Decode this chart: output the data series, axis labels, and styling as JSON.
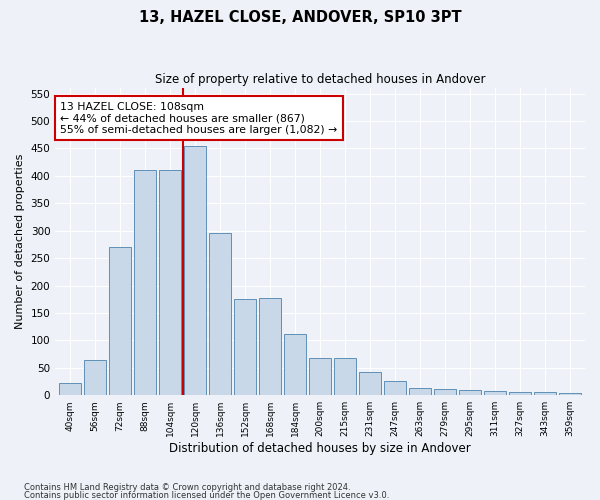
{
  "title": "13, HAZEL CLOSE, ANDOVER, SP10 3PT",
  "subtitle": "Size of property relative to detached houses in Andover",
  "xlabel": "Distribution of detached houses by size in Andover",
  "ylabel": "Number of detached properties",
  "footnote1": "Contains HM Land Registry data © Crown copyright and database right 2024.",
  "footnote2": "Contains public sector information licensed under the Open Government Licence v3.0.",
  "annotation_line1": "13 HAZEL CLOSE: 108sqm",
  "annotation_line2": "← 44% of detached houses are smaller (867)",
  "annotation_line3": "55% of semi-detached houses are larger (1,082) →",
  "bar_color": "#c8d8e8",
  "bar_edge_color": "#6090b8",
  "vline_color": "#cc0000",
  "annotation_box_color": "#ffffff",
  "annotation_box_edge": "#cc0000",
  "background_color": "#eef2f8",
  "categories": [
    "40sqm",
    "56sqm",
    "72sqm",
    "88sqm",
    "104sqm",
    "120sqm",
    "136sqm",
    "152sqm",
    "168sqm",
    "184sqm",
    "200sqm",
    "215sqm",
    "231sqm",
    "247sqm",
    "263sqm",
    "279sqm",
    "295sqm",
    "311sqm",
    "327sqm",
    "343sqm",
    "359sqm"
  ],
  "values": [
    22,
    64,
    270,
    410,
    410,
    455,
    295,
    175,
    178,
    112,
    67,
    67,
    43,
    25,
    14,
    12,
    10,
    7,
    5,
    5,
    4
  ],
  "vline_x": 4.5,
  "ylim": [
    0,
    560
  ],
  "yticks": [
    0,
    50,
    100,
    150,
    200,
    250,
    300,
    350,
    400,
    450,
    500,
    550
  ]
}
